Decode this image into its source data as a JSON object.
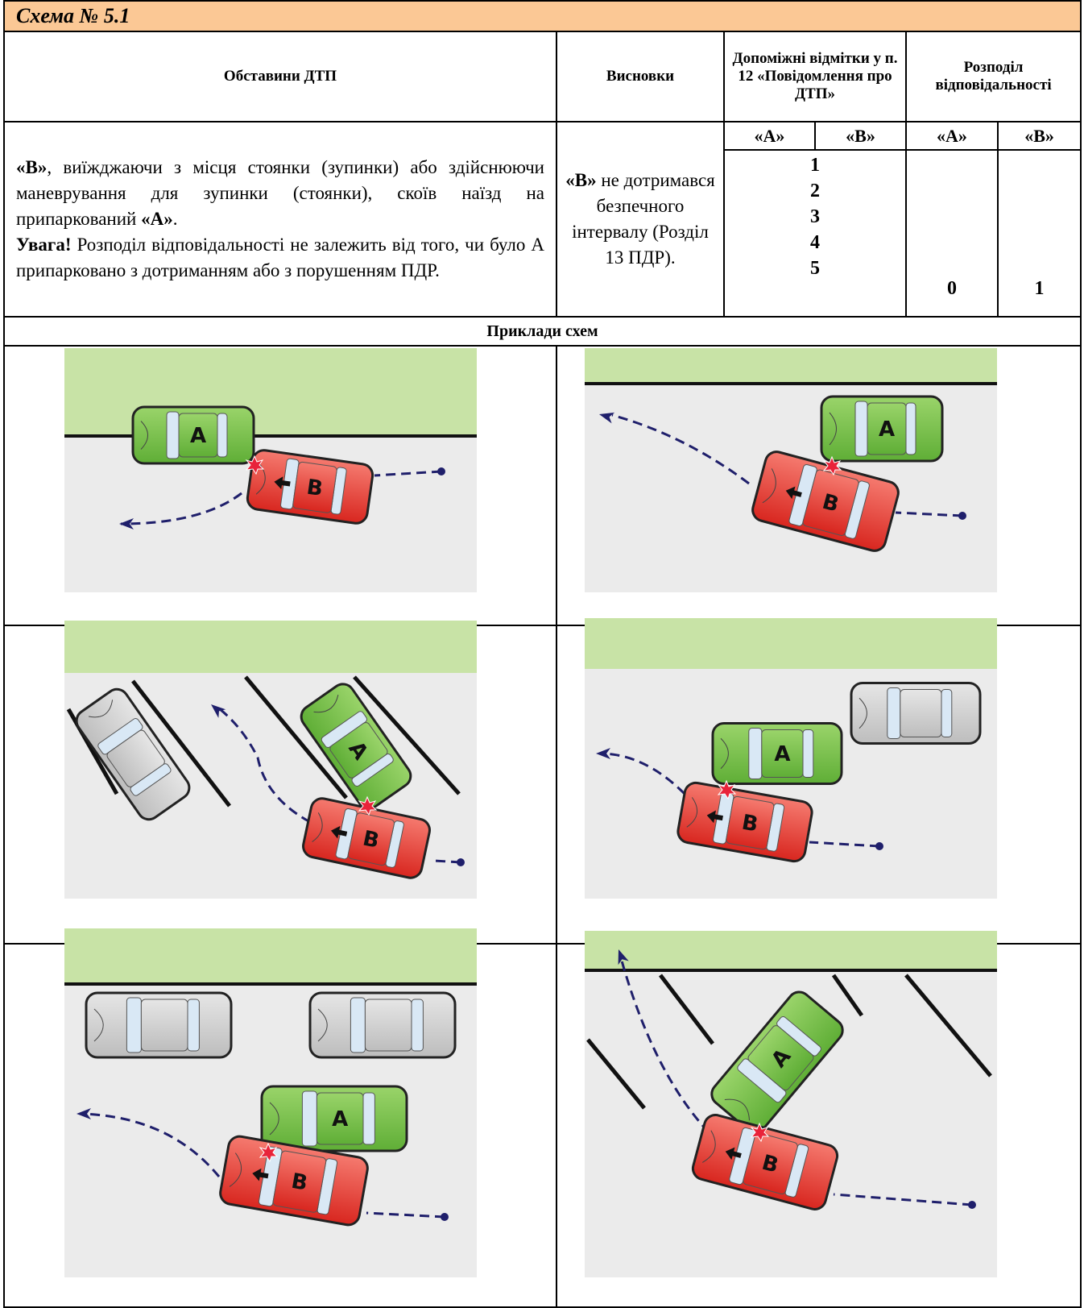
{
  "header": {
    "title": "Схема № 5.1"
  },
  "table": {
    "headers": [
      "Обставини ДТП",
      "Висновки",
      "Допоміжні відмітки у п. 12 «Повідомлення про ДТП»",
      "Розподіл відповідальності"
    ],
    "subheaders": [
      "«А»",
      "«В»",
      "«А»",
      "«В»"
    ],
    "circumstances": [
      "«В»",
      ", виїжджаючи з місця стоянки (зупинки) або здійснюючи маневрування для зупинки (стоянки), скоїв наїзд на  припаркований ",
      "«А»",
      ".",
      "Увага!",
      " Розподіл відповідальності не залежить від того, чи було А припарковано з дотриманням або з порушенням ПДР."
    ],
    "conclusions": [
      "«В»",
      " не дотримався безпечного інтервалу (Розділ 13 ПДР)."
    ],
    "marks": [
      1,
      2,
      3,
      4,
      5
    ],
    "responsibility": {
      "a": 0,
      "b": 1
    },
    "examples_title": "Приклади схем"
  },
  "diagram_labels": {
    "a": "A",
    "b": "B"
  }
}
